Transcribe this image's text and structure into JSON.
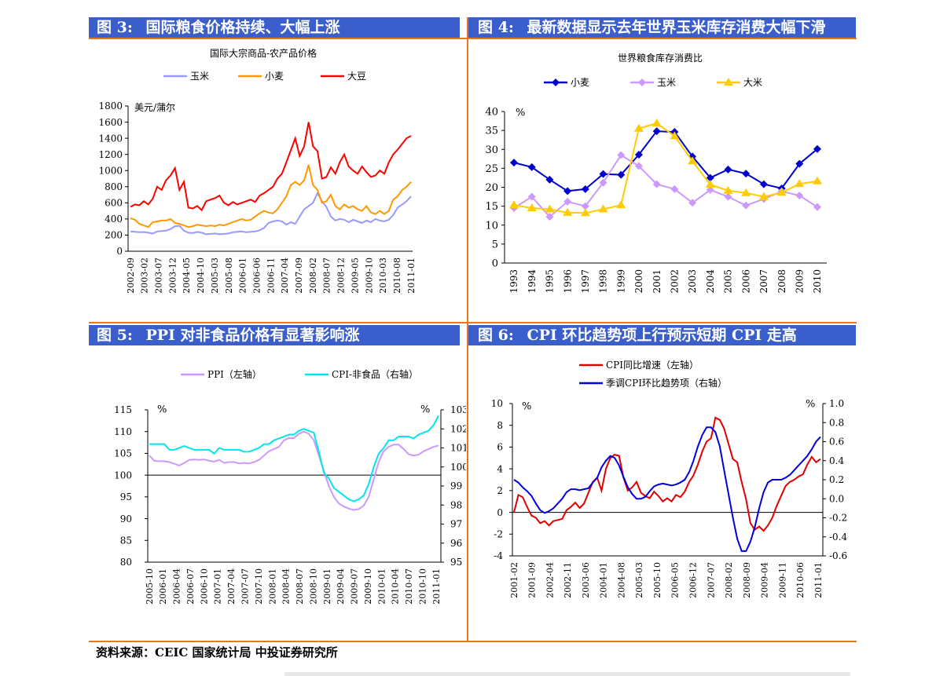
{
  "panels": {
    "fig3": {
      "label": "图 3:",
      "title": "国际粮食价格持续、大幅上涨"
    },
    "fig4": {
      "label": "图 4:",
      "title": "最新数据显示去年世界玉米库存消费大幅下滑"
    },
    "fig5": {
      "label": "图 5:",
      "title": "PPI 对非食品价格有显著影响涨"
    },
    "fig6": {
      "label": "图 6:",
      "title": "CPI 环比趋势项上行预示短期 CPI 走高"
    }
  },
  "source": "资料来源：CEIC  国家统计局  中投证券研究所",
  "chart_data": [
    {
      "id": "chart3",
      "type": "line",
      "title": "国际大宗商品-农产品价格",
      "ylabel": "美元/蒲尔",
      "ylim": [
        0,
        1800
      ],
      "yticks": [
        "0",
        "200",
        "400",
        "600",
        "800",
        "1000",
        "1200",
        "1400",
        "1600",
        "1800"
      ],
      "x_labels": [
        "2002-09",
        "2003-02",
        "2003-07",
        "2003-12",
        "2004-05",
        "2004-10",
        "2005-03",
        "2005-08",
        "2006-01",
        "2006-06",
        "2006-11",
        "2007-04",
        "2007-09",
        "2008-02",
        "2008-07",
        "2008-12",
        "2009-05",
        "2009-10",
        "2010-03",
        "2010-08",
        "2011-01"
      ],
      "series": [
        {
          "name": "玉米",
          "color": "#9999ff",
          "values": [
            245,
            240,
            235,
            238,
            230,
            220,
            245,
            250,
            255,
            275,
            310,
            315,
            255,
            230,
            225,
            240,
            230,
            210,
            215,
            220,
            210,
            215,
            220,
            235,
            240,
            245,
            235,
            240,
            245,
            260,
            290,
            350,
            370,
            380,
            370,
            330,
            360,
            340,
            430,
            520,
            560,
            600,
            720,
            620,
            550,
            430,
            380,
            400,
            390,
            360,
            390,
            370,
            350,
            380,
            360,
            400,
            380,
            370,
            390,
            450,
            540,
            580,
            620,
            680
          ]
        },
        {
          "name": "小麦",
          "color": "#ff9900",
          "values": [
            410,
            390,
            340,
            320,
            300,
            360,
            370,
            380,
            380,
            400,
            350,
            340,
            320,
            300,
            310,
            330,
            320,
            310,
            320,
            310,
            330,
            320,
            340,
            360,
            380,
            400,
            380,
            390,
            430,
            470,
            500,
            480,
            470,
            520,
            600,
            680,
            820,
            860,
            820,
            880,
            1070,
            820,
            760,
            600,
            620,
            700,
            560,
            520,
            580,
            540,
            560,
            520,
            500,
            560,
            480,
            460,
            500,
            460,
            500,
            640,
            680,
            760,
            800,
            860
          ]
        },
        {
          "name": "大豆",
          "color": "#ff0000",
          "values": [
            550,
            580,
            570,
            620,
            580,
            650,
            800,
            760,
            880,
            940,
            1030,
            760,
            860,
            540,
            530,
            560,
            510,
            620,
            640,
            660,
            690,
            600,
            570,
            610,
            580,
            600,
            620,
            640,
            610,
            690,
            720,
            760,
            800,
            900,
            960,
            1100,
            1250,
            1400,
            1180,
            1300,
            1600,
            1300,
            1240,
            900,
            920,
            1040,
            960,
            1100,
            1200,
            1050,
            1000,
            960,
            1050,
            980,
            920,
            940,
            1000,
            960,
            1100,
            1200,
            1260,
            1330,
            1400,
            1430
          ]
        }
      ]
    },
    {
      "id": "chart4",
      "type": "line",
      "title": "世界粮食库存消费比",
      "ylabel": "%",
      "ylim": [
        0,
        40
      ],
      "yticks": [
        "0",
        "5",
        "10",
        "15",
        "20",
        "25",
        "30",
        "35",
        "40"
      ],
      "categories": [
        "1993",
        "1994",
        "1995",
        "1996",
        "1997",
        "1998",
        "1999",
        "2000",
        "2001",
        "2002",
        "2003",
        "2004",
        "2005",
        "2006",
        "2007",
        "2008",
        "2009",
        "2010"
      ],
      "series": [
        {
          "name": "小麦",
          "color": "#0000cc",
          "values": [
            26.5,
            25.3,
            22,
            19,
            19.5,
            23.5,
            23.3,
            28.6,
            34.8,
            34.6,
            28.1,
            22.5,
            24.7,
            23.6,
            20.8,
            19.7,
            26.2,
            30.1
          ]
        },
        {
          "name": "玉米",
          "color": "#cc99ff",
          "values": [
            14.5,
            17.5,
            12.2,
            16.2,
            15,
            21.2,
            28.5,
            25.6,
            20.8,
            19.5,
            15.9,
            19.3,
            17.5,
            15.2,
            16.9,
            18.9,
            17.8,
            14.8
          ]
        },
        {
          "name": "大米",
          "color": "#ffcc00",
          "values": [
            15.3,
            14.5,
            14.2,
            13.3,
            13.2,
            14.2,
            15.3,
            35.5,
            36.9,
            33.5,
            26.9,
            20.7,
            19.1,
            18.5,
            17.5,
            18.6,
            20.9,
            21.6
          ]
        }
      ]
    },
    {
      "id": "chart5",
      "type": "line",
      "left_axis": {
        "label": "%",
        "ylim": [
          80,
          115
        ],
        "ticks": [
          "80",
          "85",
          "90",
          "95",
          "100",
          "105",
          "110",
          "115"
        ]
      },
      "right_axis": {
        "label": "%",
        "ylim": [
          95,
          103
        ],
        "ticks": [
          "95",
          "96",
          "97",
          "98",
          "99",
          "100",
          "101",
          "102",
          "103"
        ]
      },
      "x_labels": [
        "2005-10",
        "2006-01",
        "2006-04",
        "2006-07",
        "2006-10",
        "2007-01",
        "2007-04",
        "2007-07",
        "2007-10",
        "2008-01",
        "2008-04",
        "2008-07",
        "2008-10",
        "2009-01",
        "2009-04",
        "2009-07",
        "2009-10",
        "2010-01",
        "2010-04",
        "2010-07",
        "2010-10",
        "2011-01"
      ],
      "series": [
        {
          "name": "PPI（左轴）",
          "axis": "left",
          "color": "#cc99ff",
          "values": [
            104.5,
            103.3,
            103.2,
            103.2,
            103,
            102.6,
            102.2,
            102.8,
            103.5,
            103.6,
            103.5,
            103.6,
            103.3,
            103.1,
            103.5,
            102.8,
            103,
            103,
            102.7,
            102.8,
            102.7,
            103.0,
            103.5,
            104.5,
            105.5,
            106,
            106.5,
            108,
            108.5,
            108.5,
            109.5,
            110,
            109.5,
            108,
            104.5,
            101,
            97.5,
            95,
            93.5,
            92.8,
            92.3,
            92,
            92.2,
            93,
            95,
            99,
            103,
            105.5,
            106.5,
            107,
            107,
            106,
            104.8,
            104.5,
            104.7,
            105.5,
            106,
            106.5,
            106.8
          ]
        },
        {
          "name": "CPI-非食品（右轴）",
          "axis": "right",
          "color": "#00e5ee",
          "values": [
            101.2,
            101.2,
            101.2,
            101.2,
            100.9,
            100.9,
            101.0,
            101.1,
            101.0,
            100.9,
            100.9,
            100.9,
            100.9,
            100.7,
            101.0,
            100.9,
            100.9,
            100.9,
            100.9,
            100.8,
            100.8,
            100.9,
            101.0,
            101.2,
            101.2,
            101.4,
            101.5,
            101.6,
            101.7,
            101.7,
            101.9,
            102.0,
            101.9,
            101.8,
            100.8,
            99.7,
            99.4,
            98.9,
            98.7,
            98.5,
            98.3,
            98.2,
            98.3,
            98.5,
            99.1,
            100.0,
            100.7,
            101.0,
            101.4,
            101.4,
            101.6,
            101.6,
            101.6,
            101.5,
            101.7,
            101.8,
            101.9,
            102.2,
            102.7
          ]
        }
      ]
    },
    {
      "id": "chart6",
      "type": "line",
      "left_axis": {
        "label": "%",
        "ylim": [
          -4,
          10
        ],
        "ticks": [
          "-4",
          "-2",
          "0",
          "2",
          "4",
          "6",
          "8",
          "10"
        ]
      },
      "right_axis": {
        "label": "%",
        "ylim": [
          -0.6,
          1.0
        ],
        "ticks": [
          "-0.6",
          "-0.4",
          "-0.2",
          "0.0",
          "0.2",
          "0.4",
          "0.6",
          "0.8",
          "1.0"
        ]
      },
      "x_labels": [
        "2001-02",
        "2001-09",
        "2002-04",
        "2002-11",
        "2003-06",
        "2004-01",
        "2004-08",
        "2005-03",
        "2005-10",
        "2006-05",
        "2006-12",
        "2007-07",
        "2008-02",
        "2008-09",
        "2009-04",
        "2009-11",
        "2010-06",
        "2011-01"
      ],
      "series": [
        {
          "name": "CPI同比增速（左轴）",
          "axis": "left",
          "color": "#e00000",
          "values": [
            0,
            1.6,
            1.4,
            0.5,
            -0.3,
            -0.5,
            -1,
            -0.8,
            -1.2,
            -0.8,
            -0.7,
            -0.6,
            0.2,
            0.5,
            0.9,
            0.4,
            0.8,
            1.8,
            2.8,
            3.2,
            2,
            4,
            5,
            5.3,
            5.2,
            3.2,
            2,
            2.3,
            2.8,
            1.8,
            1.5,
            1.3,
            1.9,
            1.5,
            1,
            1.3,
            1.0,
            1.6,
            1.4,
            1.9,
            2.8,
            3.4,
            4.4,
            5.6,
            6.5,
            6.8,
            8.7,
            8.5,
            7.7,
            6.3,
            4.9,
            4.6,
            2.8,
            1.2,
            -1.0,
            -1.6,
            -1.3,
            -1.7,
            -1.2,
            -0.5,
            0.6,
            1.5,
            2.4,
            2.8,
            3.0,
            3.3,
            3.5,
            4.4,
            5.1,
            4.6,
            4.9
          ]
        },
        {
          "name": "季调CPI环比趋势项（右轴）",
          "axis": "right",
          "color": "#0000dd",
          "values": [
            0.2,
            0.17,
            0.12,
            0.08,
            0.03,
            -0.05,
            -0.12,
            -0.15,
            -0.13,
            -0.1,
            -0.05,
            0.0,
            0.07,
            0.1,
            0.1,
            0.09,
            0.1,
            0.11,
            0.17,
            0.22,
            0.33,
            0.4,
            0.45,
            0.43,
            0.35,
            0.23,
            0.12,
            0.05,
            0.0,
            0.0,
            0.02,
            0.08,
            0.13,
            0.15,
            0.16,
            0.15,
            0.14,
            0.15,
            0.17,
            0.2,
            0.28,
            0.4,
            0.55,
            0.67,
            0.75,
            0.75,
            0.7,
            0.55,
            0.3,
            0.05,
            -0.2,
            -0.42,
            -0.55,
            -0.55,
            -0.45,
            -0.3,
            -0.1,
            0.07,
            0.17,
            0.2,
            0.2,
            0.2,
            0.22,
            0.25,
            0.3,
            0.35,
            0.4,
            0.45,
            0.52,
            0.6,
            0.65
          ]
        }
      ]
    }
  ]
}
